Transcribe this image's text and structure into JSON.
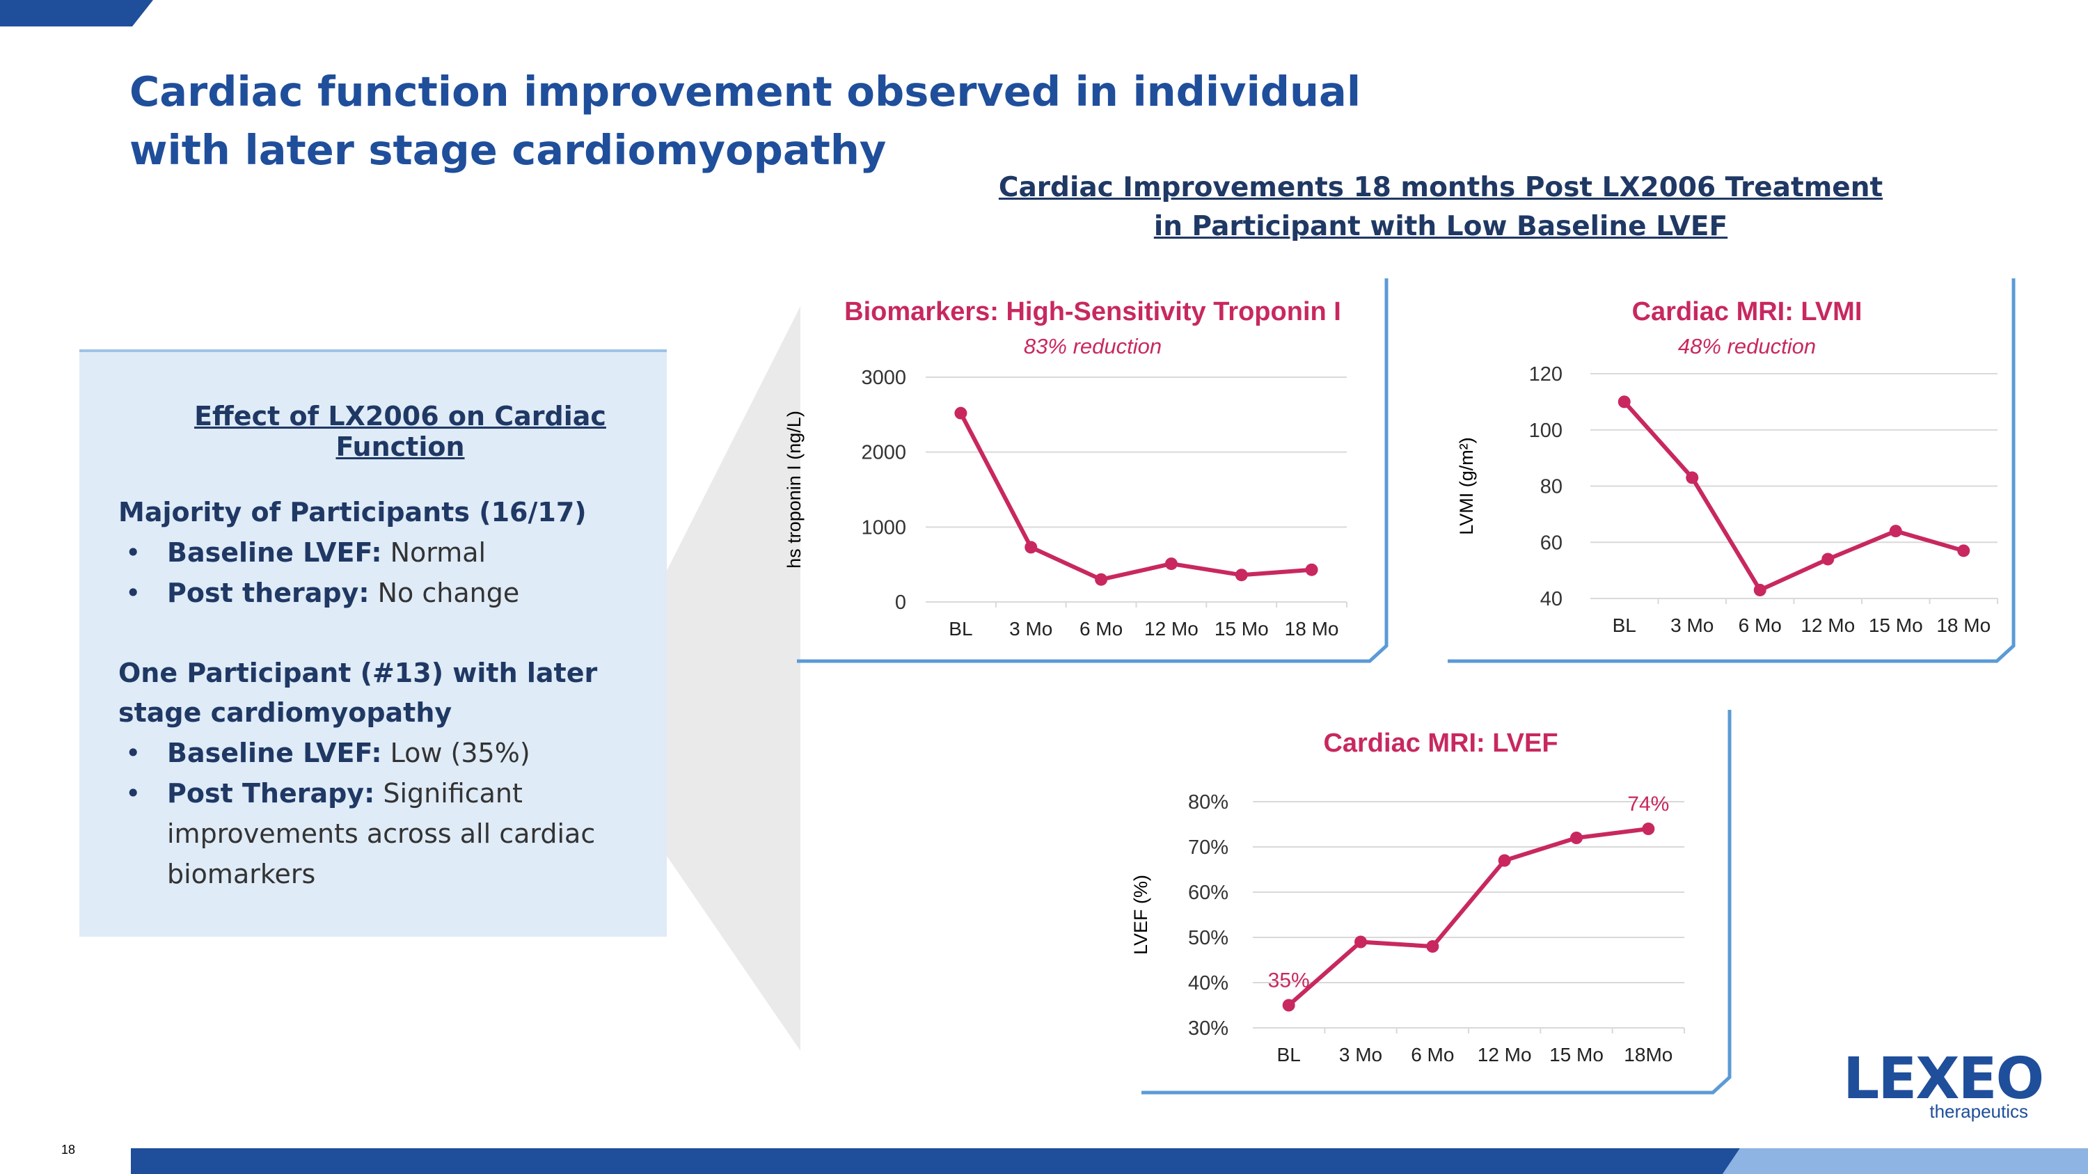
{
  "slide": {
    "title": "Cardiac function improvement observed in individual with later stage cardiomyopathy",
    "section_title_line1": "Cardiac Improvements 18 months Post LX2006 Treatment",
    "section_title_line2": "in Participant with Low Baseline LVEF",
    "page_number": "18"
  },
  "panel": {
    "heading": "Effect of LX2006 on Cardiac Function",
    "group1_title": "Majority of Participants (16/17)",
    "group1_items": [
      {
        "label": "Baseline LVEF:",
        "value": "Normal"
      },
      {
        "label": "Post therapy:",
        "value": "No change"
      }
    ],
    "group2_title": "One Participant (#13) with later stage cardiomyopathy",
    "group2_items": [
      {
        "label": "Baseline LVEF:",
        "value": "Low (35%)"
      },
      {
        "label": "Post Therapy:",
        "value": "Significant improvements across all cardiac biomarkers"
      }
    ]
  },
  "logo": {
    "name": "LEXEO",
    "sub": "therapeutics"
  },
  "colors": {
    "brand_blue": "#1F4E9B",
    "series": "#C8285F",
    "frame": "#5B9BD5",
    "panel_bg": "#DFEBF7"
  },
  "chart_data": [
    {
      "type": "line",
      "title": "Biomarkers: High-Sensitivity Troponin I",
      "subtitle": "83% reduction",
      "ylabel": "hs troponin I (ng/L)",
      "categories": [
        "BL",
        "3 Mo",
        "6 Mo",
        "12 Mo",
        "15 Mo",
        "18 Mo"
      ],
      "values": [
        2520,
        730,
        300,
        510,
        360,
        430
      ],
      "ylim": [
        0,
        3000
      ],
      "yticks": [
        0,
        1000,
        2000,
        3000
      ],
      "ytick_labels": [
        "0",
        "1000",
        "2000",
        "3000"
      ],
      "grid": true
    },
    {
      "type": "line",
      "title": "Cardiac MRI: LVMI",
      "subtitle": "48% reduction",
      "ylabel": "LVMI (g/m²)",
      "categories": [
        "BL",
        "3 Mo",
        "6 Mo",
        "12 Mo",
        "15 Mo",
        "18 Mo"
      ],
      "values": [
        110,
        83,
        43,
        54,
        64,
        57
      ],
      "ylim": [
        40,
        120
      ],
      "yticks": [
        40,
        60,
        80,
        100,
        120
      ],
      "ytick_labels": [
        "40",
        "60",
        "80",
        "100",
        "120"
      ],
      "grid": true
    },
    {
      "type": "line",
      "title": "Cardiac MRI: LVEF",
      "subtitle": "",
      "ylabel": "LVEF (%)",
      "categories": [
        "BL",
        "3 Mo",
        "6 Mo",
        "12 Mo",
        "15 Mo",
        "18Mo"
      ],
      "values": [
        35,
        49,
        48,
        67,
        72,
        74
      ],
      "data_labels": [
        "35%",
        "",
        "",
        "",
        "",
        "74%"
      ],
      "ylim": [
        30,
        80
      ],
      "yticks": [
        30,
        40,
        50,
        60,
        70,
        80
      ],
      "ytick_labels": [
        "30%",
        "40%",
        "50%",
        "60%",
        "70%",
        "80%"
      ],
      "grid": true
    }
  ]
}
